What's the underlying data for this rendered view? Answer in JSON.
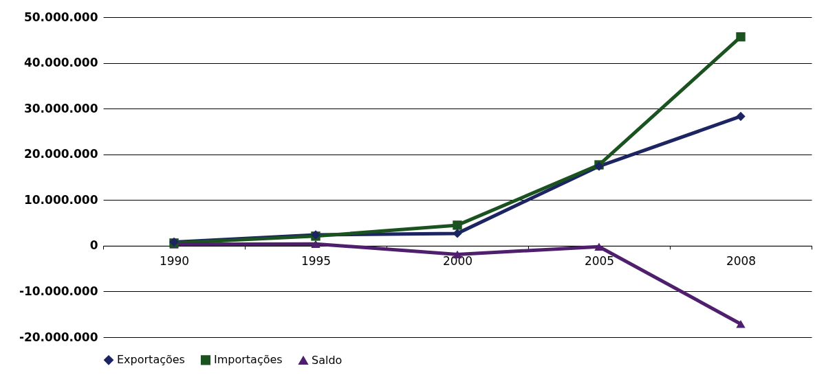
{
  "chart_data": {
    "type": "line",
    "categories": [
      "1990",
      "1995",
      "2000",
      "2005",
      "2008"
    ],
    "series": [
      {
        "name": "Exportações",
        "color": "#1c2461",
        "marker": "diamond",
        "values": [
          800000,
          2400000,
          2700000,
          17400000,
          28300000
        ]
      },
      {
        "name": "Importações",
        "color": "#1b5320",
        "marker": "square",
        "values": [
          600000,
          2100000,
          4500000,
          17700000,
          45700000
        ]
      },
      {
        "name": "Saldo",
        "color": "#4f1f6e",
        "marker": "triangle",
        "values": [
          300000,
          400000,
          -1900000,
          -200000,
          -17100000
        ]
      }
    ],
    "ylim": [
      -20000000,
      50000000
    ],
    "yticks": [
      {
        "value": -20000000,
        "label": "-20.000.000"
      },
      {
        "value": -10000000,
        "label": "-10.000.000"
      },
      {
        "value": 0,
        "label": "0"
      },
      {
        "value": 10000000,
        "label": "10.000.000"
      },
      {
        "value": 20000000,
        "label": "20.000.000"
      },
      {
        "value": 30000000,
        "label": "30.000.000"
      },
      {
        "value": 40000000,
        "label": "40.000.000"
      },
      {
        "value": 50000000,
        "label": "50.000.000"
      }
    ],
    "grid": "y",
    "legend": "bottom",
    "line_style": "solid"
  }
}
